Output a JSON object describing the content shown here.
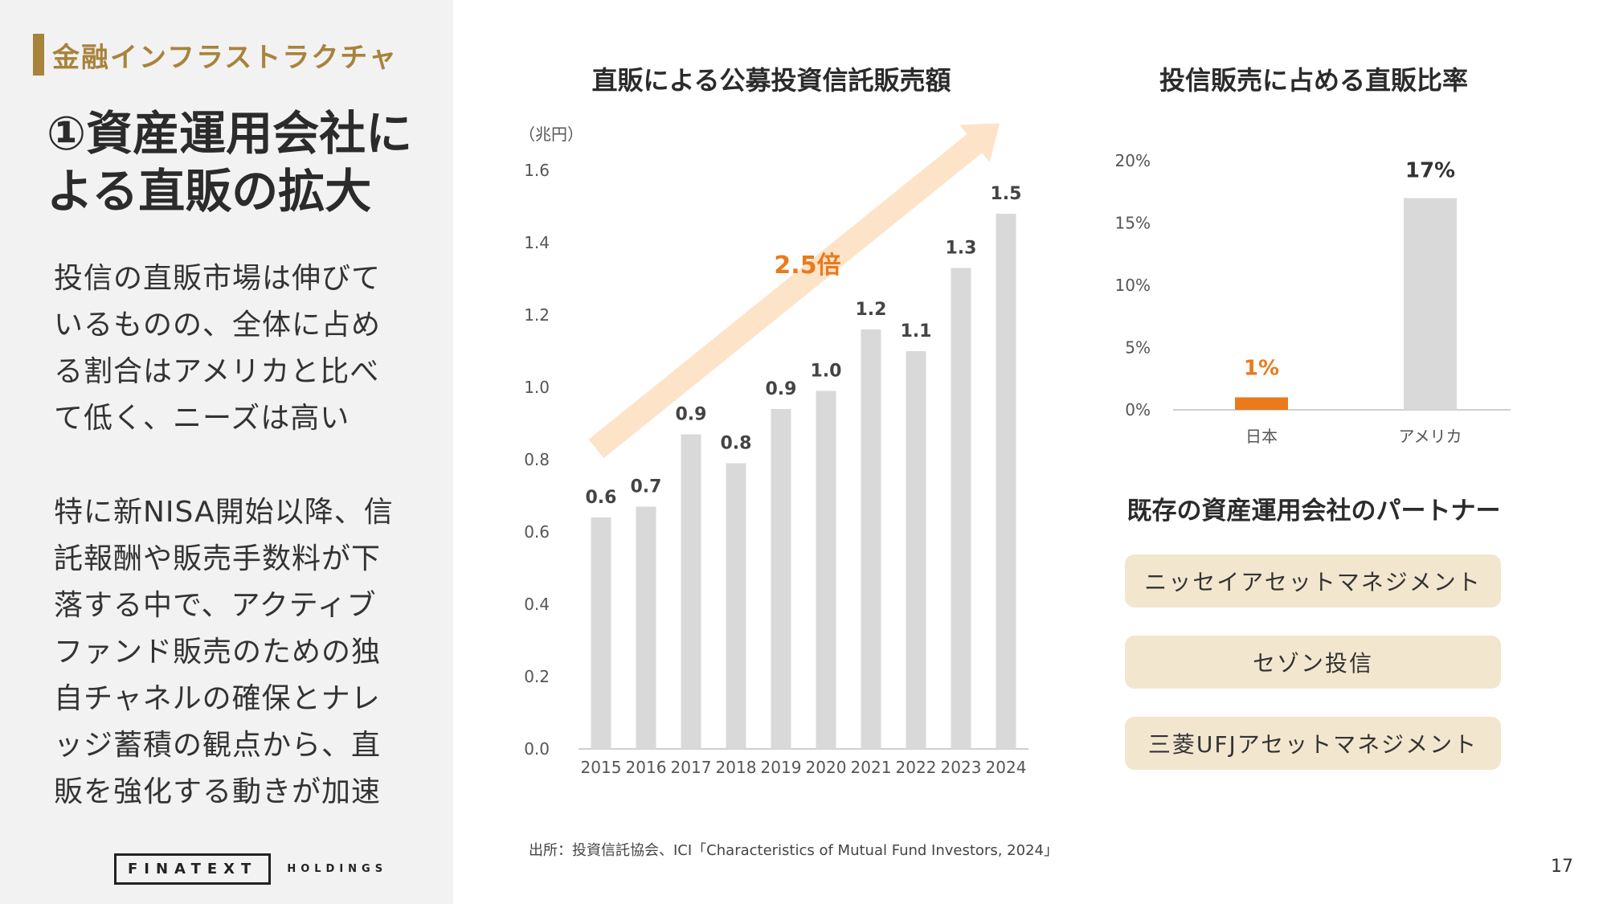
{
  "sidebar": {
    "section_label": "金融インフラストラクチャ",
    "title": "①資産運用会社による直販の拡大",
    "paragraph1": "投信の直販市場は伸びて\nいるものの、全体に占め\nる割合はアメリカと比べ\nて低く、ニーズは高い",
    "paragraph2": "特に新NISA開始以降、信\n託報酬や販売手数料が下\n落する中で、アクティブ\nファンド販売のための独\n自チャネルの確保とナレ\nッジ蓄積の観点から、直\n販を強化する動きが加速",
    "logo_main": "FINATEXT",
    "logo_sub": "HOLDINGS"
  },
  "bar_chart_title": "直販による公募投資信託販売額",
  "ratio_chart_title": "投信販売に占める直販比率",
  "growth_label": "2.5倍",
  "partners": {
    "title": "既存の資産運用会社のパートナー",
    "items": [
      "ニッセイアセットマネジメント",
      "セゾン投信",
      "三菱UFJアセットマネジメント"
    ]
  },
  "source": "出所：投資信託協会、ICI「Characteristics of Mutual Fund Investors, 2024」",
  "page_number": "17",
  "colors": {
    "accent": "#a8833c",
    "bar": "#d9d9d9",
    "highlight": "#ea7a1c",
    "arrow": "#fde3c8",
    "partner_bg": "#f3e6cf"
  },
  "chart_data": [
    {
      "type": "bar",
      "title": "直販による公募投資信託販売額",
      "ylabel": "（兆円）",
      "categories": [
        "2015",
        "2016",
        "2017",
        "2018",
        "2019",
        "2020",
        "2021",
        "2022",
        "2023",
        "2024"
      ],
      "values": [
        0.64,
        0.67,
        0.87,
        0.79,
        0.94,
        0.99,
        1.16,
        1.1,
        1.33,
        1.48
      ],
      "data_labels": [
        "0.6",
        "0.7",
        "0.9",
        "0.8",
        "0.9",
        "1.0",
        "1.2",
        "1.1",
        "1.3",
        "1.5"
      ],
      "yticks": [
        "0.0",
        "0.2",
        "0.4",
        "0.6",
        "0.8",
        "1.0",
        "1.2",
        "1.4",
        "1.6"
      ],
      "ylim": [
        0,
        1.6
      ],
      "grid": false
    },
    {
      "type": "bar",
      "title": "投信販売に占める直販比率",
      "categories": [
        "日本",
        "アメリカ"
      ],
      "values": [
        0.01,
        0.17
      ],
      "data_labels": [
        "1%",
        "17%"
      ],
      "yticks": [
        "0%",
        "5%",
        "10%",
        "15%",
        "20%"
      ],
      "ylim": [
        0,
        0.2
      ],
      "grid": false
    }
  ]
}
